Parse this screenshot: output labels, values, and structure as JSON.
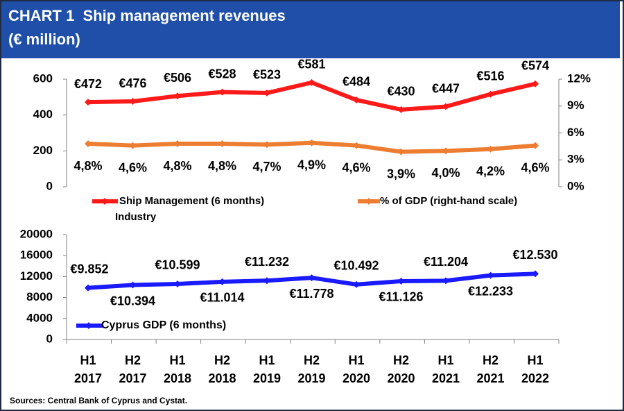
{
  "header": {
    "title": "CHART 1  Ship management revenues",
    "subtitle": "(€ million)"
  },
  "source": "Sources: Central Bank of Cyprus and Cystat.",
  "chart_data": [
    {
      "type": "line",
      "title": "Ship management revenues",
      "categories": [
        "H1 2017",
        "H2 2017",
        "H1 2018",
        "H2 2018",
        "H1 2019",
        "H2 2019",
        "H1 2020",
        "H2 2020",
        "H1 2021",
        "H2 2021",
        "H1 2022"
      ],
      "left_axis": {
        "ylim": [
          0,
          600
        ],
        "ticks": [
          "0",
          "200",
          "400",
          "600"
        ],
        "tick_values": [
          0,
          200,
          400,
          600
        ]
      },
      "right_axis": {
        "ylim": [
          0,
          12
        ],
        "ticks": [
          "0%",
          "3%",
          "6%",
          "9%",
          "12%"
        ],
        "tick_values": [
          0,
          3,
          6,
          9,
          12
        ]
      },
      "series": [
        {
          "name": "Ship Management (6 months)",
          "name_line2": "Industry",
          "axis": "left",
          "color": "#ff1a1a",
          "values": [
            472,
            476,
            506,
            528,
            523,
            581,
            484,
            430,
            447,
            516,
            574
          ],
          "labels": [
            "€472",
            "€476",
            "€506",
            "€528",
            "€523",
            "€581",
            "€484",
            "€430",
            "€447",
            "€516",
            "€574"
          ]
        },
        {
          "name": "% of GDP (right-hand scale)",
          "axis": "right",
          "color": "#ed7d31",
          "values": [
            4.8,
            4.6,
            4.8,
            4.8,
            4.7,
            4.9,
            4.6,
            3.9,
            4.0,
            4.2,
            4.6
          ],
          "labels": [
            "4,8%",
            "4,6%",
            "4,8%",
            "4,8%",
            "4,7%",
            "4,9%",
            "4,6%",
            "3,9%",
            "4,0%",
            "4,2%",
            "4,6%"
          ]
        }
      ]
    },
    {
      "type": "line",
      "categories": [
        "H1 2017",
        "H2 2017",
        "H1 2018",
        "H2 2018",
        "H1 2019",
        "H2 2019",
        "H1 2020",
        "H2 2020",
        "H1 2021",
        "H2 2021",
        "H1 2022"
      ],
      "category_lines": [
        [
          "H1",
          "2017"
        ],
        [
          "H2",
          "2017"
        ],
        [
          "H1",
          "2018"
        ],
        [
          "H2",
          "2018"
        ],
        [
          "H1",
          "2019"
        ],
        [
          "H2",
          "2019"
        ],
        [
          "H1",
          "2020"
        ],
        [
          "H2",
          "2020"
        ],
        [
          "H1",
          "2021"
        ],
        [
          "H2",
          "2021"
        ],
        [
          "H1",
          "2022"
        ]
      ],
      "left_axis": {
        "ylim": [
          0,
          20000
        ],
        "ticks": [
          "0",
          "4000",
          "8000",
          "12000",
          "16000",
          "20000"
        ],
        "tick_values": [
          0,
          4000,
          8000,
          12000,
          16000,
          20000
        ]
      },
      "series": [
        {
          "name": "Cyprus GDP (6 months)",
          "color": "#1a1aff",
          "values": [
            9852,
            10394,
            10599,
            11014,
            11232,
            11778,
            10492,
            11126,
            11204,
            12233,
            12530
          ],
          "labels": [
            "€9.852",
            "€10.394",
            "€10.599",
            "€11.014",
            "€11.232",
            "€11.778",
            "€10.492",
            "€11.126",
            "€11.204",
            "€12.233",
            "€12.530"
          ]
        }
      ]
    }
  ]
}
